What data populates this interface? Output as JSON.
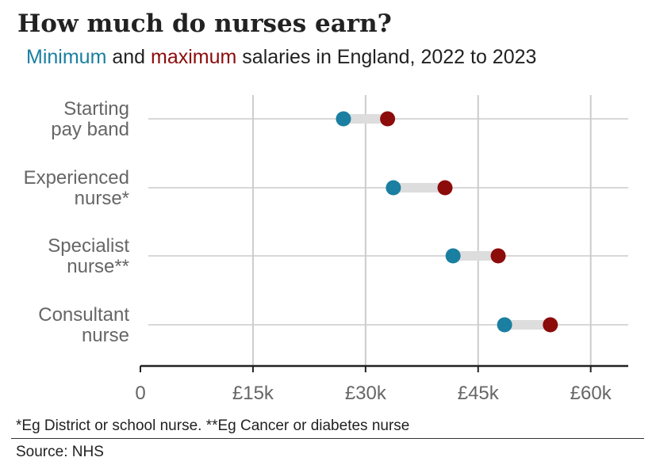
{
  "title": "How much do nurses earn?",
  "subtitle": {
    "min_word": "Minimum",
    "and_word": " and ",
    "max_word": "maximum",
    "rest": " salaries in England, 2022 to 2023"
  },
  "colors": {
    "min": "#1a7fa0",
    "max": "#8c0b0b",
    "connector": "#dddddd",
    "grid": "#cccccc",
    "axis": "#222222",
    "label": "#666666"
  },
  "chart_data": {
    "type": "dumbbell",
    "xlim": [
      0,
      65000
    ],
    "x_ticks": [
      {
        "value": 0,
        "label": "0"
      },
      {
        "value": 15000,
        "label": "£15k"
      },
      {
        "value": 30000,
        "label": "£30k"
      },
      {
        "value": 45000,
        "label": "£45k"
      },
      {
        "value": 60000,
        "label": "£60k"
      }
    ],
    "grid": true,
    "categories": [
      {
        "label_lines": [
          "Starting",
          "pay band"
        ],
        "min": 27055,
        "max": 32934
      },
      {
        "label_lines": [
          "Experienced",
          "nurse*"
        ],
        "min": 33706,
        "max": 40588
      },
      {
        "label_lines": [
          "Specialist",
          "nurse**"
        ],
        "min": 41659,
        "max": 47672
      },
      {
        "label_lines": [
          "Consultant",
          "nurse"
        ],
        "min": 48526,
        "max": 54619
      }
    ]
  },
  "footnote": "*Eg District or school nurse. **Eg Cancer or diabetes nurse",
  "source": "Source: NHS"
}
